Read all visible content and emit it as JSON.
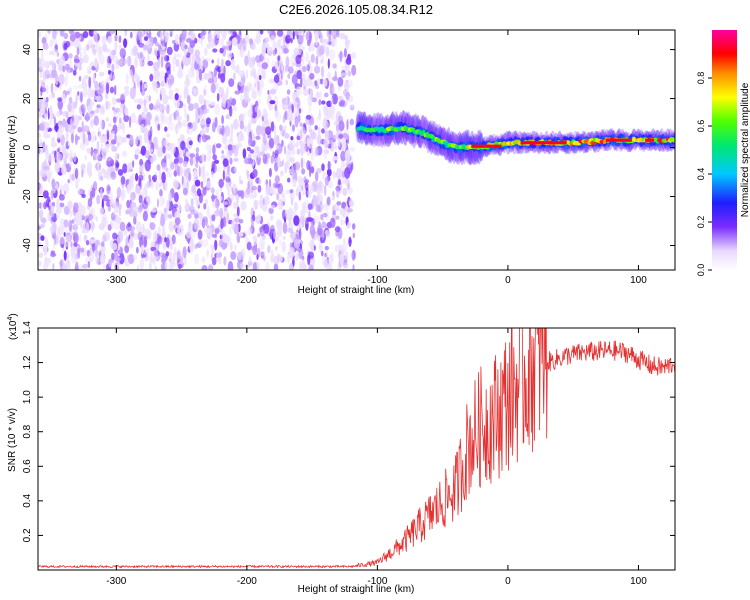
{
  "figure_title": "C2E6.2026.105.08.34.R12",
  "colors": {
    "snr_line": "#e53030",
    "frame": "#000000",
    "noise": "#6a28e6"
  },
  "chart_data": [
    {
      "type": "heatmap",
      "title": "C2E6.2026.105.08.34.R12",
      "xlabel": "Height of straight line (km)",
      "ylabel": "Frequency (Hz)",
      "xlim": [
        -360,
        128
      ],
      "ylim": [
        -50,
        48
      ],
      "xticks": [
        -300,
        -200,
        -100,
        0,
        100
      ],
      "yticks": [
        -40,
        -20,
        0,
        20,
        40
      ],
      "colorbar": {
        "label": "Normalized spectral amplitude",
        "range": [
          0,
          1
        ],
        "ticks": [
          0.0,
          0.2,
          0.4,
          0.6,
          0.8
        ],
        "tick_labels": [
          "0.0",
          "0.2",
          "0.4",
          "0.6",
          "0.8"
        ],
        "colormap": "rainbow (white-violet-blue-cyan-green-yellow-red-magenta)"
      },
      "features": [
        {
          "name": "broadband noise",
          "x_range": [
            -360,
            -118
          ],
          "freq_range": [
            -50,
            48
          ],
          "amplitude": "low (0.05-0.2)"
        },
        {
          "name": "signal trace",
          "trace": [
            [
              -115,
              8
            ],
            [
              -100,
              7
            ],
            [
              -80,
              8
            ],
            [
              -65,
              6
            ],
            [
              -50,
              2
            ],
            [
              -40,
              0
            ],
            [
              -25,
              0
            ],
            [
              -10,
              1
            ],
            [
              0,
              2
            ],
            [
              20,
              2
            ],
            [
              50,
              2
            ],
            [
              80,
              3
            ],
            [
              100,
              3
            ],
            [
              128,
              3
            ]
          ],
          "amplitude": "high (0.6-1.0)"
        }
      ]
    },
    {
      "type": "line",
      "title": "",
      "xlabel": "Height of straight line (km)",
      "ylabel": "SNR (10 * v/v)",
      "yscale_label": "(x10",
      "yscale_exp": "4",
      "yscale_suffix": ")",
      "xlim": [
        -360,
        128
      ],
      "ylim": [
        0,
        1.4
      ],
      "xticks": [
        -300,
        -200,
        -100,
        0,
        100
      ],
      "yticks": [
        0.2,
        0.4,
        0.6,
        0.8,
        1.0,
        1.2,
        1.4
      ],
      "ytick_labels": [
        "0.2",
        "0.4",
        "0.6",
        "0.8",
        "1.0",
        "1.2",
        "1.4"
      ],
      "series": [
        {
          "name": "SNR",
          "envelope": [
            [
              -360,
              0.02
            ],
            [
              -120,
              0.02
            ],
            [
              -100,
              0.04
            ],
            [
              -80,
              0.15
            ],
            [
              -60,
              0.3
            ],
            [
              -40,
              0.45
            ],
            [
              -30,
              0.7
            ],
            [
              -20,
              0.8
            ],
            [
              -10,
              0.85
            ],
            [
              0,
              0.95
            ],
            [
              10,
              1.05
            ],
            [
              20,
              1.15
            ],
            [
              30,
              1.2
            ],
            [
              45,
              1.24
            ],
            [
              60,
              1.26
            ],
            [
              80,
              1.27
            ],
            [
              90,
              1.26
            ],
            [
              100,
              1.22
            ],
            [
              110,
              1.18
            ],
            [
              120,
              1.17
            ],
            [
              128,
              1.2
            ]
          ]
        }
      ]
    }
  ]
}
